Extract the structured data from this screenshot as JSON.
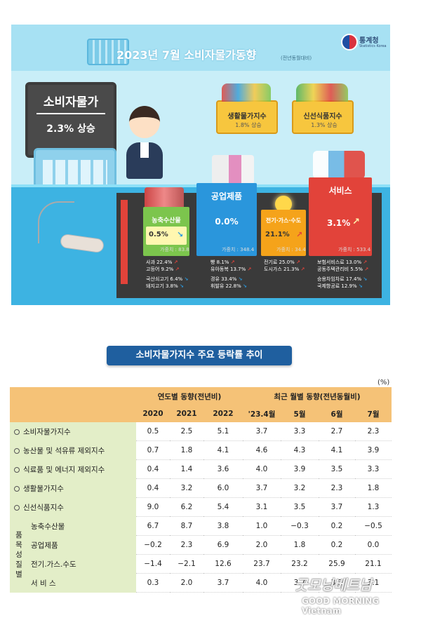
{
  "infographic": {
    "title": "2023년  7월 소비자물가동향",
    "title_note": "(전년동월대비)",
    "agency": "통계청",
    "agency_en": "Statistics Korea",
    "headline": {
      "label": "소비자물가",
      "value": "2.3% 상승"
    },
    "baskets": [
      {
        "label": "생활물가지수",
        "value": "1.8% 상승"
      },
      {
        "label": "신선식품지수",
        "value": "1.3% 상승"
      }
    ],
    "categories": [
      {
        "title": "농축수산물",
        "value": "0.5%",
        "weight": "가중치 : 83.8",
        "up_items": [
          "사과 22.4%",
          "고등어 9.2%"
        ],
        "down_items": [
          "국산쇠고기 6.4%",
          "돼지고기 3.8%"
        ]
      },
      {
        "title": "공업제품",
        "value": "0.0%",
        "weight": "가중치 : 348.4",
        "up_items": [
          "빵 8.1%",
          "유아동복 13.7%"
        ],
        "down_items": [
          "경유 33.4%",
          "휘발유 22.8%"
        ]
      },
      {
        "title": "전기·가스·수도",
        "value": "21.1%",
        "weight": "가중치 : 34.4",
        "up_items": [
          "전기료 25.0%",
          "도시가스 21.3%"
        ],
        "down_items": []
      },
      {
        "title": "서비스",
        "value": "3.1%",
        "weight": "가중치 : 533.4",
        "up_items": [
          "보험서비스료 13.0%",
          "공동주택관리비 5.5%"
        ],
        "down_items": [
          "승용차임차료 17.4%",
          "국제항공료 12.9%"
        ]
      }
    ],
    "colors": {
      "sky": "#c9eef8",
      "counter": "#3db3e2",
      "dark": "#3a3a3a",
      "green": "#7cc54d",
      "blue": "#2a96dc",
      "orange": "#f5a31a",
      "red": "#e2433a"
    }
  },
  "table": {
    "title": "소비자물가지수 주요 등락률 추이",
    "unit": "(%)",
    "group_yearly": "연도별 동향(전년비)",
    "group_monthly": "최근 월별 동향(전년동월비)",
    "columns": [
      "2020",
      "2021",
      "2022",
      "'23.4월",
      "5월",
      "6월",
      "7월"
    ],
    "rows": [
      {
        "label": "소비자물가지수",
        "values": [
          "0.5",
          "2.5",
          "5.1",
          "3.7",
          "3.3",
          "2.7",
          "2.3"
        ]
      },
      {
        "label": "농산물 및 석유류 제외지수",
        "values": [
          "0.7",
          "1.8",
          "4.1",
          "4.6",
          "4.3",
          "4.1",
          "3.9"
        ]
      },
      {
        "label": "식료품 및 에너지 제외지수",
        "values": [
          "0.4",
          "1.4",
          "3.6",
          "4.0",
          "3.9",
          "3.5",
          "3.3"
        ]
      },
      {
        "label": "생활물가지수",
        "values": [
          "0.4",
          "3.2",
          "6.0",
          "3.7",
          "3.2",
          "2.3",
          "1.8"
        ]
      },
      {
        "label": "신선식품지수",
        "values": [
          "9.0",
          "6.2",
          "5.4",
          "3.1",
          "3.5",
          "3.7",
          "1.3"
        ]
      }
    ],
    "by_item_label": [
      "품",
      "목",
      "성",
      "질",
      "별"
    ],
    "sub_rows": [
      {
        "label": "농축수산물",
        "values": [
          "6.7",
          "8.7",
          "3.8",
          "1.0",
          "−0.3",
          "0.2",
          "−0.5"
        ]
      },
      {
        "label": "공업제품",
        "values": [
          "−0.2",
          "2.3",
          "6.9",
          "2.0",
          "1.8",
          "0.2",
          "0.0"
        ]
      },
      {
        "label": "전기.가스.수도",
        "values": [
          "−1.4",
          "−2.1",
          "12.6",
          "23.7",
          "23.2",
          "25.9",
          "21.1"
        ]
      },
      {
        "label": "서 비 스",
        "values": [
          "0.3",
          "2.0",
          "3.7",
          "4.0",
          "3.7",
          "3.3",
          "3.1"
        ]
      }
    ]
  },
  "watermark": {
    "line1": "굿모닝베트남",
    "line2": "GOOD MORNING Vietnam"
  }
}
